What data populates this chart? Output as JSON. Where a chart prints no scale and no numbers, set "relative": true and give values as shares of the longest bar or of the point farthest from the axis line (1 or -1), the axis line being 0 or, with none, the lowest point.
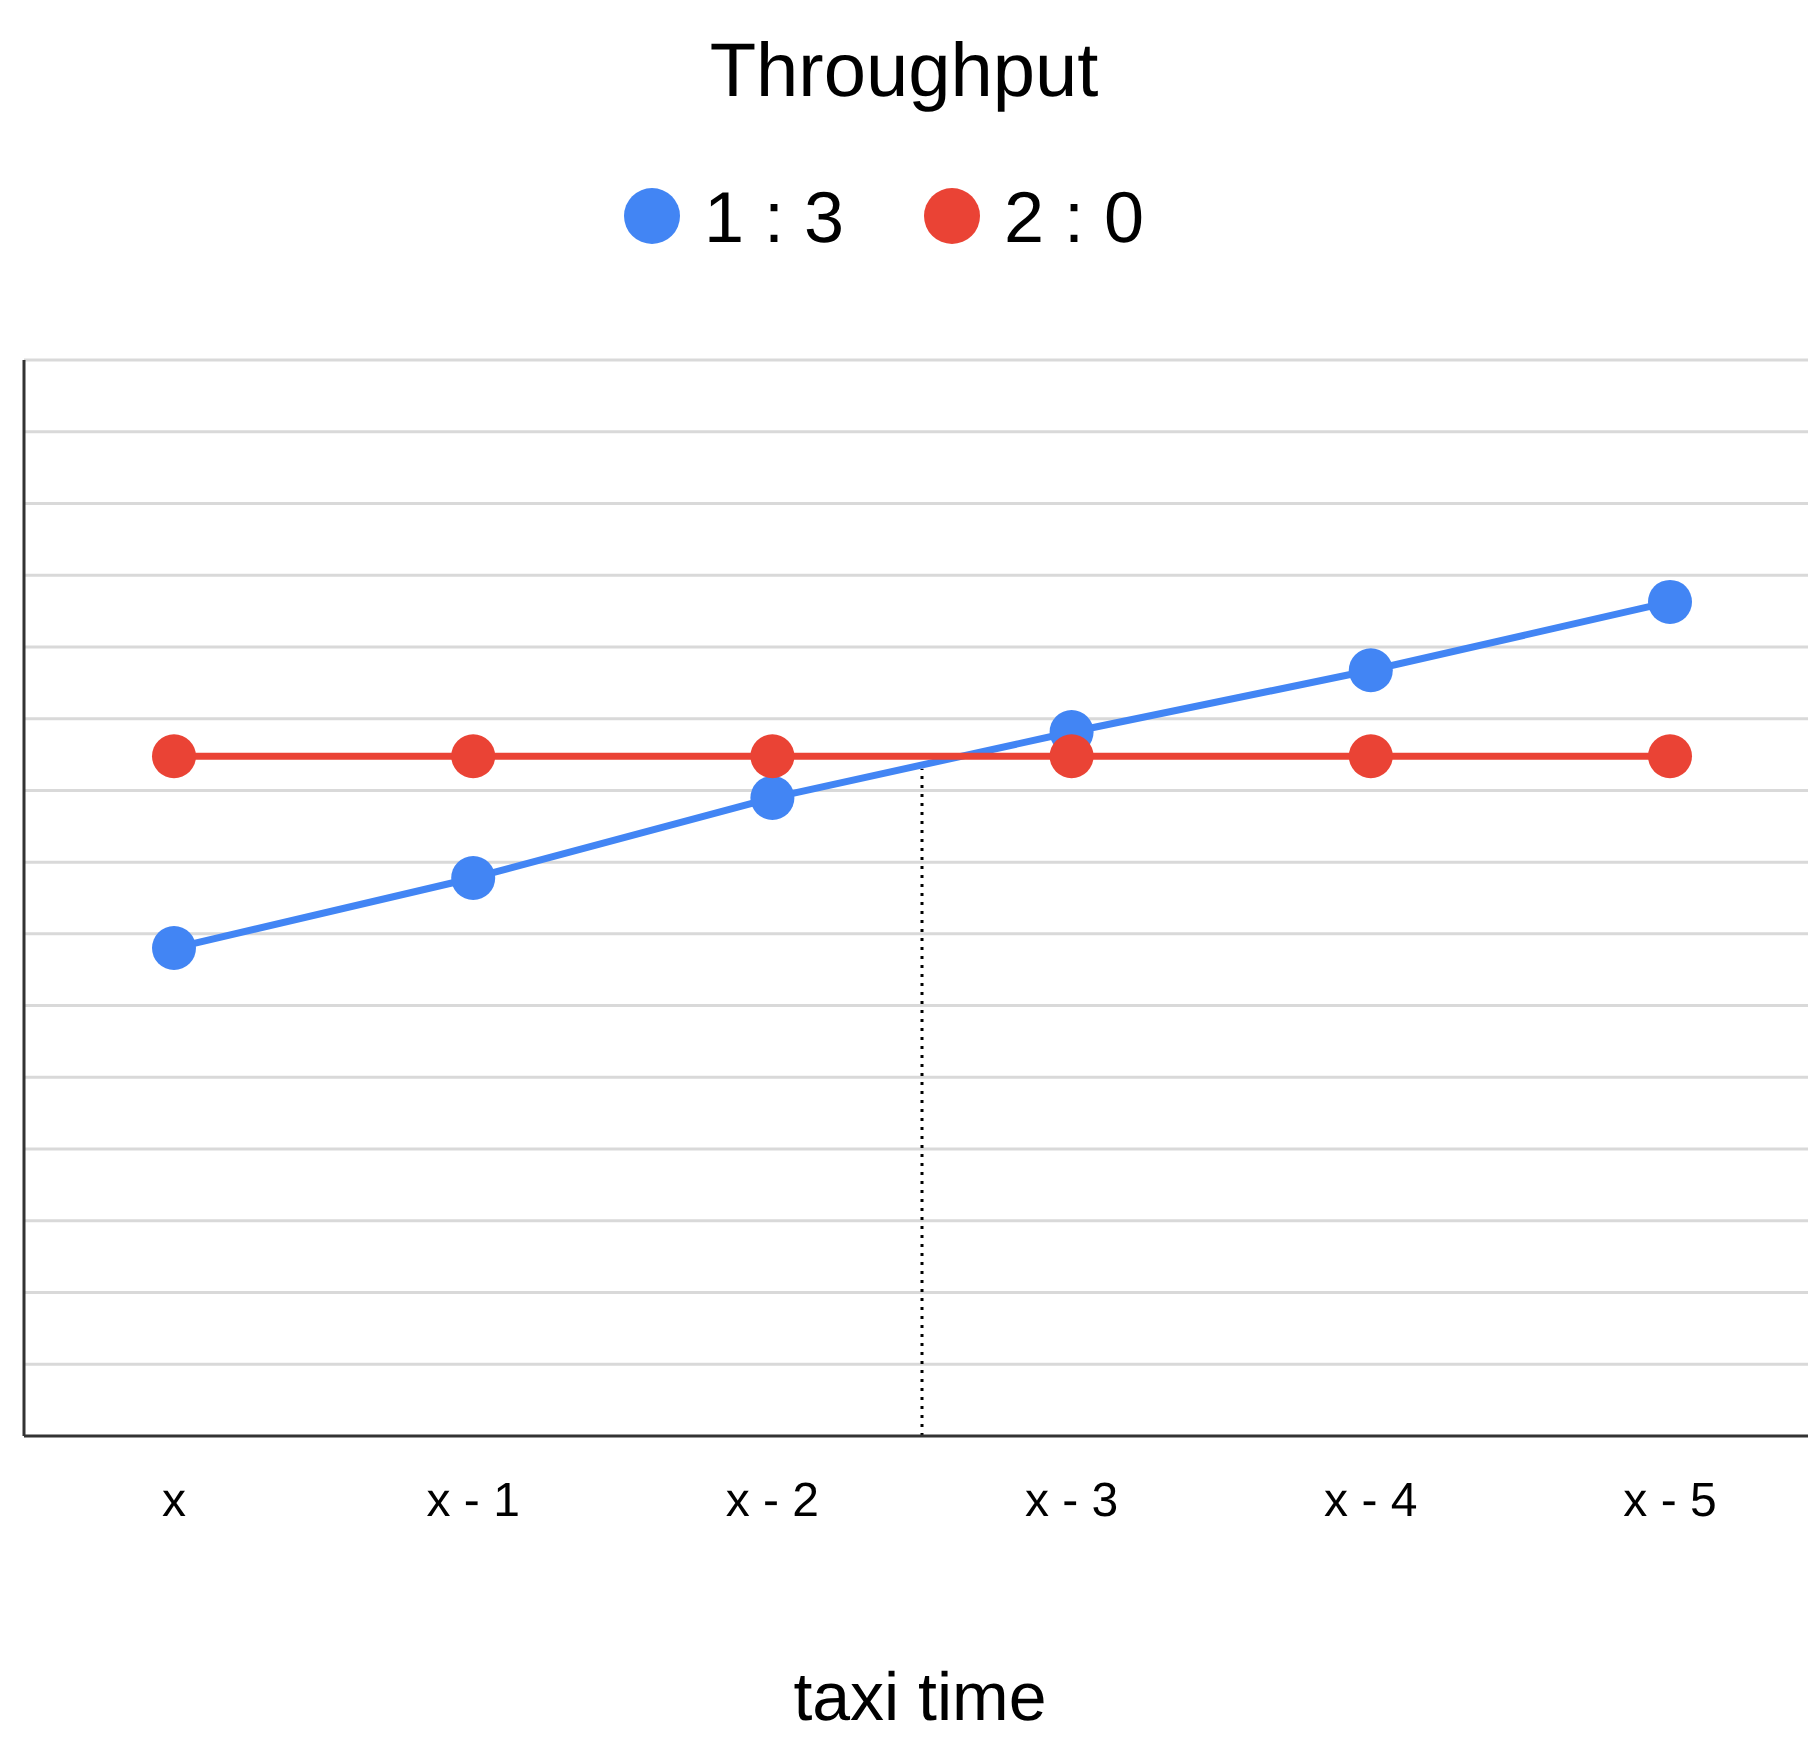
{
  "chart_data": {
    "type": "line",
    "title": "Throughput",
    "xlabel": "taxi time",
    "relative": true,
    "categories": [
      "x",
      "x - 1",
      "x - 2",
      "x - 3",
      "x - 4",
      "x - 5"
    ],
    "series": [
      {
        "name": "1 : 3",
        "color": "#4285f4",
        "values": [
          0.585,
          0.669,
          0.765,
          0.844,
          0.918,
          1
        ]
      },
      {
        "name": "2 : 0",
        "color": "#ea4335",
        "values": [
          0.815,
          0.815,
          0.815,
          0.815,
          0.815,
          0.815
        ]
      }
    ],
    "grid": "y",
    "legend": "top",
    "marker": "circle",
    "line_style": "solid"
  }
}
